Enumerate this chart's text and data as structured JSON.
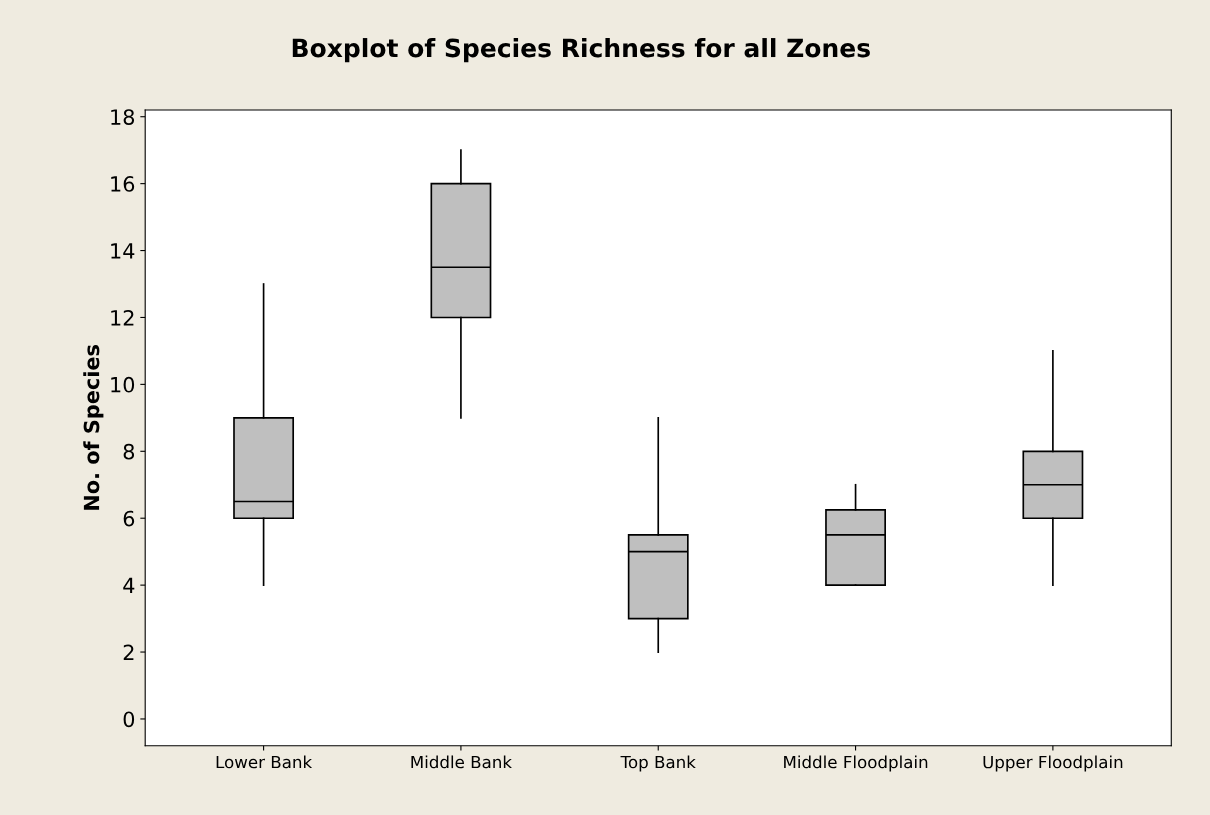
{
  "chart_data": {
    "type": "box",
    "title": "Boxplot of Species Richness for all Zones",
    "ylabel": "No. of Species",
    "categories": [
      "Lower Bank",
      "Middle Bank",
      "Top Bank",
      "Middle Floodplain",
      "Upper Floodplain"
    ],
    "boxes": [
      {
        "low": 4,
        "q1": 6,
        "median": 6.5,
        "q3": 9,
        "high": 13
      },
      {
        "low": 9,
        "q1": 12,
        "median": 13.5,
        "q3": 16,
        "high": 17
      },
      {
        "low": 2,
        "q1": 3,
        "median": 5,
        "q3": 5.5,
        "high": 9
      },
      {
        "low": 4,
        "q1": 4,
        "median": 5.5,
        "q3": 6.25,
        "high": 7
      },
      {
        "low": 4,
        "q1": 6,
        "median": 7,
        "q3": 8,
        "high": 11
      }
    ],
    "color": "#bfbfbf",
    "ylim": [
      -0.8,
      18.2
    ],
    "yticks": [
      0,
      2,
      4,
      6,
      8,
      10,
      12,
      14,
      16,
      18
    ],
    "grid": false,
    "legend": false
  }
}
